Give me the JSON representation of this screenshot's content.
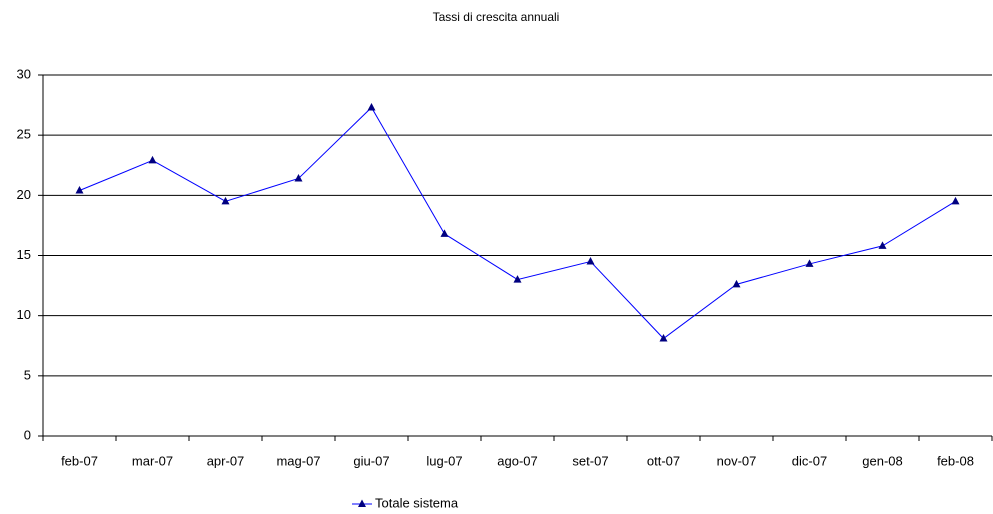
{
  "chart_data": {
    "type": "line",
    "title": "Tassi di crescita annuali",
    "categories": [
      "feb-07",
      "mar-07",
      "apr-07",
      "mag-07",
      "giu-07",
      "lug-07",
      "ago-07",
      "set-07",
      "ott-07",
      "nov-07",
      "dic-07",
      "gen-08",
      "feb-08"
    ],
    "series": [
      {
        "name": "Totale sistema",
        "color": "#0000ff",
        "marker_color": "#000080",
        "values": [
          20.4,
          22.9,
          19.5,
          21.4,
          27.3,
          16.8,
          13.0,
          14.5,
          8.1,
          12.6,
          14.3,
          15.8,
          19.5
        ]
      }
    ],
    "ylim": [
      0,
      30
    ],
    "yticks": [
      0,
      5,
      10,
      15,
      20,
      25,
      30
    ],
    "grid": true,
    "legend": "bottom"
  }
}
